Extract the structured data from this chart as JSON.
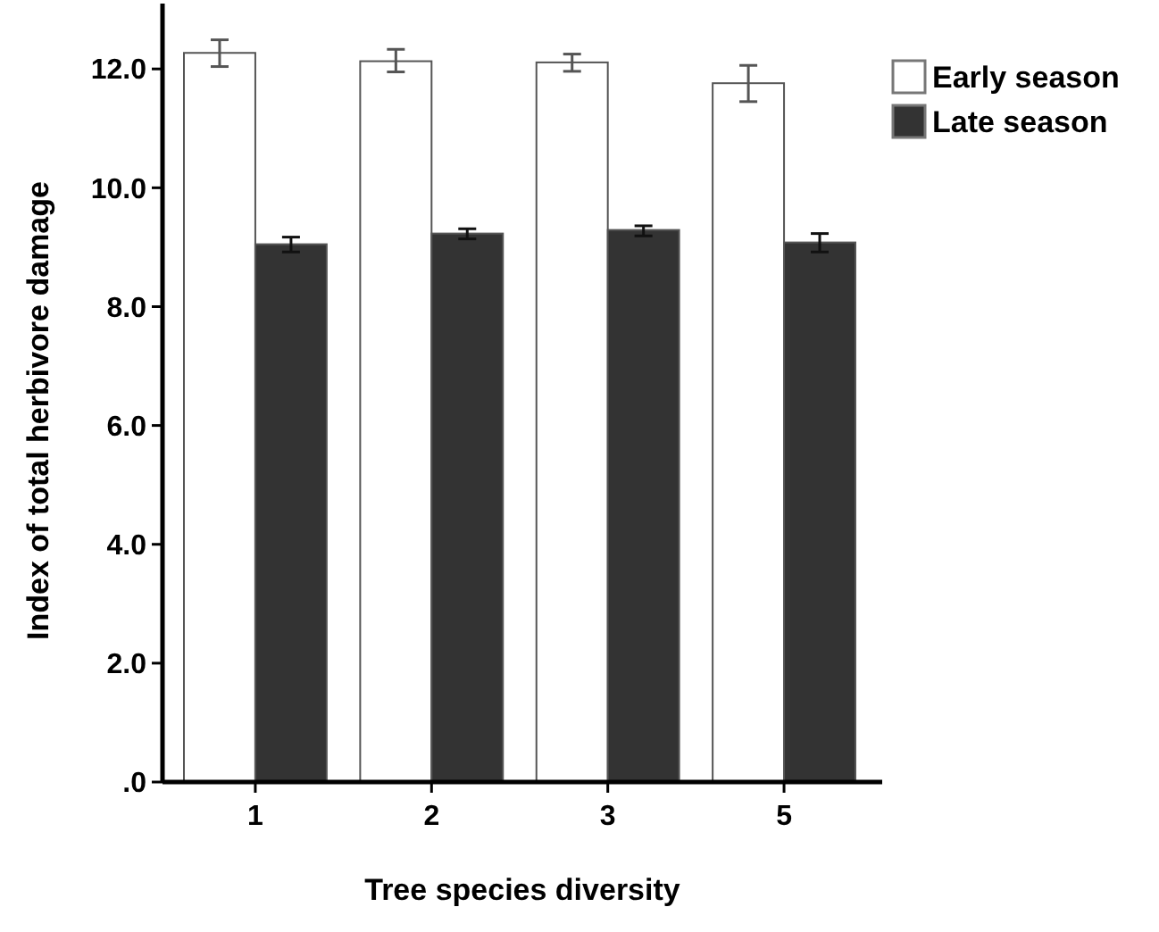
{
  "chart_data": {
    "type": "bar",
    "xlabel": "Tree species diversity",
    "ylabel": "Index of total herbivore damage",
    "categories": [
      "1",
      "2",
      "3",
      "5"
    ],
    "series": [
      {
        "name": "Early season",
        "color": "#ffffff",
        "values": [
          12.27,
          12.13,
          12.11,
          11.76
        ],
        "errors": [
          [
            12.04,
            12.49
          ],
          [
            11.95,
            12.33
          ],
          [
            11.96,
            12.25
          ],
          [
            11.45,
            12.06
          ]
        ]
      },
      {
        "name": "Late season",
        "color": "#333333",
        "values": [
          9.05,
          9.23,
          9.29,
          9.08
        ],
        "errors": [
          [
            8.92,
            9.17
          ],
          [
            9.14,
            9.31
          ],
          [
            9.19,
            9.36
          ],
          [
            8.92,
            9.23
          ]
        ]
      }
    ],
    "ylim": [
      0,
      13.1
    ],
    "yticks": [
      {
        "value": 0,
        "label": ".0"
      },
      {
        "value": 2,
        "label": "2.0"
      },
      {
        "value": 4,
        "label": "4.0"
      },
      {
        "value": 6,
        "label": "6.0"
      },
      {
        "value": 8,
        "label": "8.0"
      },
      {
        "value": 10,
        "label": "10.0"
      },
      {
        "value": 12,
        "label": "12.0"
      }
    ],
    "legend": "top right",
    "grid": false
  }
}
